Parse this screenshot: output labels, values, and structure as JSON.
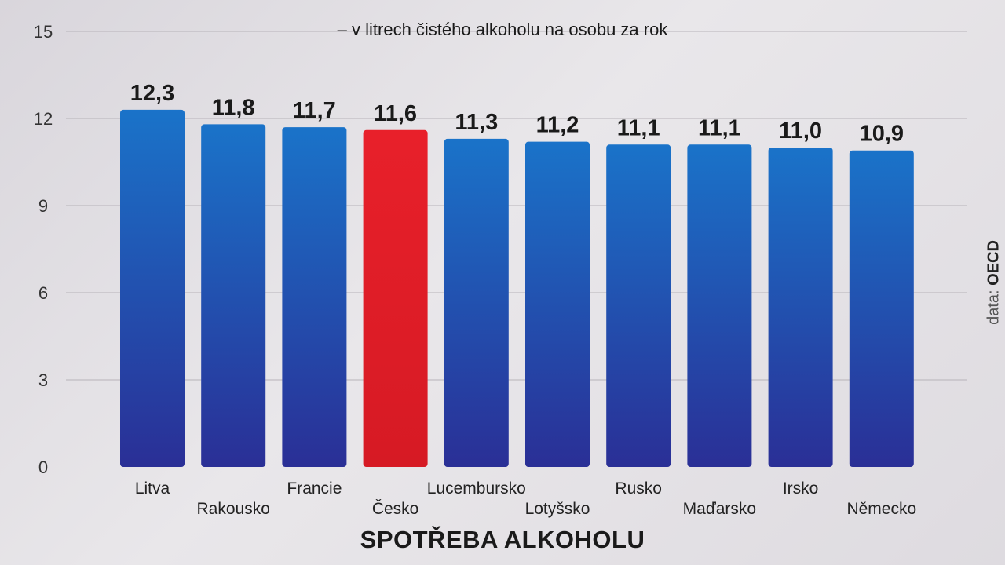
{
  "chart_data": {
    "type": "bar",
    "title": "SPOTŘEBA ALKOHOLU",
    "subtitle": "– v litrech čistého alkoholu na osobu za rok",
    "categories": [
      "Litva",
      "Rakousko",
      "Francie",
      "Česko",
      "Lucembursko",
      "Lotyšsko",
      "Rusko",
      "Maďarsko",
      "Irsko",
      "Německo"
    ],
    "values": [
      12.3,
      11.8,
      11.7,
      11.6,
      11.3,
      11.2,
      11.1,
      11.1,
      11.0,
      10.9
    ],
    "value_labels": [
      "12,3",
      "11,8",
      "11,7",
      "11,6",
      "11,3",
      "11,2",
      "11,1",
      "11,1",
      "11,0",
      "10,9"
    ],
    "highlight_category": "Česko",
    "ylim": [
      0,
      15
    ],
    "yticks": [
      0,
      3,
      6,
      9,
      12,
      15
    ],
    "grid": true,
    "colors": {
      "bar_top": "#1a73c9",
      "bar_bottom": "#2a2f96",
      "highlight_top": "#e8202a",
      "highlight_bottom": "#d61a24",
      "gridline": "#b7b3b9",
      "text": "#1a1a1a"
    }
  },
  "source": {
    "prefix": "data:",
    "name": "OECD"
  }
}
